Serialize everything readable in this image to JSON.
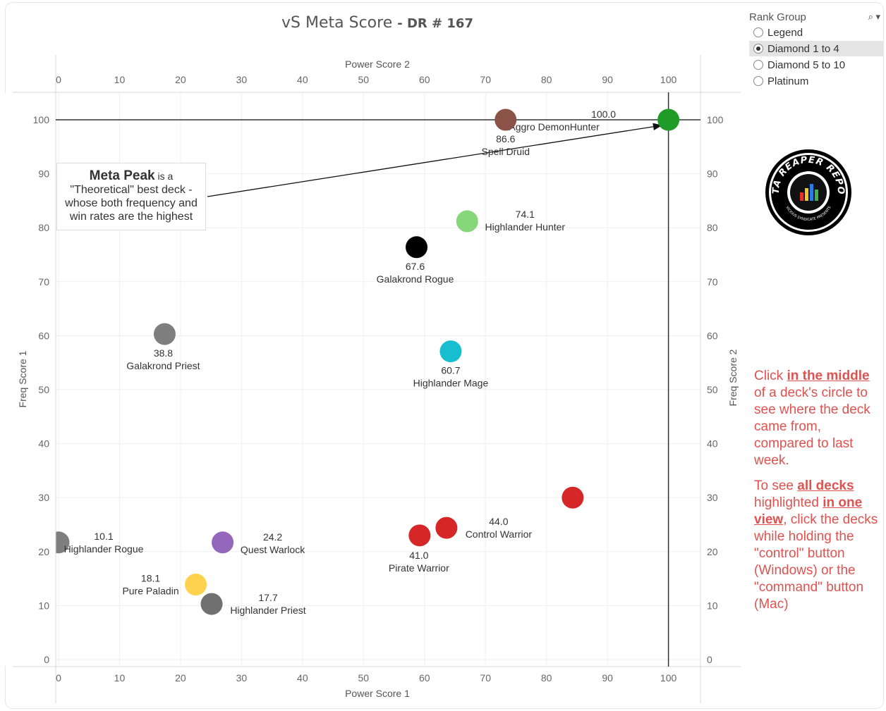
{
  "title": {
    "main": "vS Meta Score",
    "dr": "DR # 167"
  },
  "chart_data": {
    "type": "scatter",
    "xlabel": "Power Score 1",
    "xlabel_top": "Power Score 2",
    "ylabel": "Freq Score 1",
    "ylabel_right": "Freq Score 2",
    "xlim": [
      0,
      105
    ],
    "ylim": [
      0,
      105
    ],
    "xticks": [
      0,
      10,
      20,
      30,
      40,
      50,
      60,
      70,
      80,
      90,
      100
    ],
    "yticks": [
      0,
      10,
      20,
      30,
      40,
      50,
      60,
      70,
      80,
      90,
      100
    ],
    "reference_lines": {
      "x": 100,
      "y": 100
    },
    "points": [
      {
        "label": "Aggro DemonHunter",
        "value": "100.0",
        "x": 100,
        "y": 100,
        "color": "#1f9b2a"
      },
      {
        "label": "Spell Druid",
        "value": "86.6",
        "x": 73.3,
        "y": 100,
        "color": "#8b5347"
      },
      {
        "label": "Highlander Hunter",
        "value": "74.1",
        "x": 67,
        "y": 81.2,
        "color": "#86d77a"
      },
      {
        "label": "Galakrond Rogue",
        "value": "67.6",
        "x": 58.7,
        "y": 76.4,
        "color": "#000000"
      },
      {
        "label": "Highlander Mage",
        "value": "60.7",
        "x": 64.3,
        "y": 57.1,
        "color": "#17becf"
      },
      {
        "label": "Galakrond Priest",
        "value": "38.8",
        "x": 17.4,
        "y": 60.3,
        "color": "#7f7f7f"
      },
      {
        "label": "Control Warrior",
        "value": "44.0",
        "x": 63.6,
        "y": 24.4,
        "color": "#d62728"
      },
      {
        "label": "",
        "value": "",
        "x": 84.3,
        "y": 30,
        "color": "#d62728"
      },
      {
        "label": "Pirate Warrior",
        "value": "41.0",
        "x": 59.2,
        "y": 23,
        "color": "#d62728"
      },
      {
        "label": "Quest Warlock",
        "value": "24.2",
        "x": 26.9,
        "y": 21.7,
        "color": "#9467bd"
      },
      {
        "label": "Highlander Rogue",
        "value": "10.1",
        "x": 0,
        "y": 21.7,
        "color": "#7f7f7f"
      },
      {
        "label": "Pure Paladin",
        "value": "18.1",
        "x": 22.5,
        "y": 13.9,
        "color": "#ffd24d"
      },
      {
        "label": "Highlander Priest",
        "value": "17.7",
        "x": 25.1,
        "y": 10.3,
        "color": "#707070"
      }
    ]
  },
  "annotation": {
    "peak": "Meta Peak",
    "isa": " is a",
    "line2": "\"Theoretical\" best deck -",
    "line3": "whose both frequency and",
    "line4": "win rates are the highest"
  },
  "filter": {
    "title": "Rank Group",
    "tools": "⌕ ▾",
    "options": [
      {
        "label": "Legend",
        "selected": false
      },
      {
        "label": "Diamond 1 to 4",
        "selected": true
      },
      {
        "label": "Diamond 5 to 10",
        "selected": false
      },
      {
        "label": "Platinum",
        "selected": false
      }
    ]
  },
  "logo": {
    "text_top": "DATA REAPER REPORT",
    "text_bottom": "VICIOUS SYNDICATE PRESENTS"
  },
  "instructions": {
    "p1_a": "Click ",
    "p1_b": "in the middle",
    "p1_c": " of a deck's circle to see where the deck came from, compared to last week.",
    "p2_a": "To see ",
    "p2_b": "all decks",
    "p2_c": " highlighted ",
    "p2_d": "in one view",
    "p2_e": ", click the decks while holding the \"control\" button (Windows) or the \"command\" button (Mac)"
  }
}
